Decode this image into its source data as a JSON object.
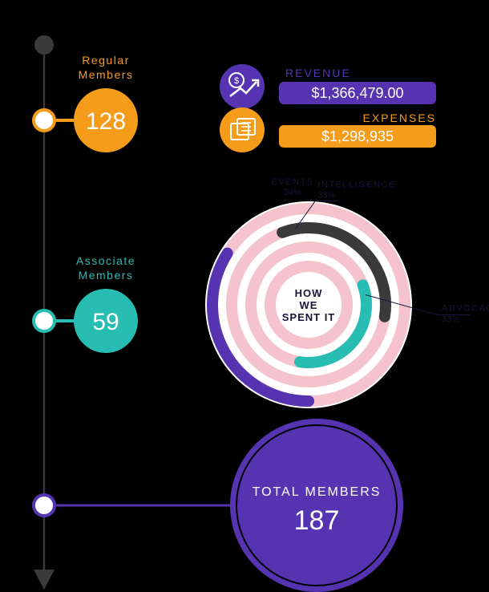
{
  "colors": {
    "bg": "#000000",
    "orange": "#f59c1a",
    "teal": "#27bdb2",
    "purple": "#5633b0",
    "purple_badge": "#5633b0",
    "orange_badge": "#f59c1a",
    "pink": "#f4c3cd",
    "dark_gray": "#3a3a3a",
    "text_dark": "#1a1437",
    "white": "#ffffff",
    "timeline": "#3a3a3a"
  },
  "timeline": {
    "top_dot_color": "#3a3a3a",
    "arrow_color": "#3a3a3a"
  },
  "regular": {
    "label1": "Regular",
    "label2": "Members",
    "value": "128",
    "label_color": "#f59c1a",
    "circle_fill": "#f59c1a",
    "circle_ring": "#f59c1a",
    "value_color": "#ffffff",
    "label_fontsize": 14,
    "value_fontsize": 30
  },
  "associate": {
    "label1": "Associate",
    "label2": "Members",
    "value": "59",
    "label_color": "#27bdb2",
    "circle_fill": "#27bdb2",
    "circle_ring": "#27bdb2",
    "value_color": "#ffffff",
    "label_fontsize": 14,
    "value_fontsize": 30
  },
  "total": {
    "label": "TOTAL MEMBERS",
    "value": "187",
    "circle_fill": "#5633b0",
    "circle_ring": "#5633b0",
    "value_color": "#ffffff",
    "label_fontsize": 16,
    "value_fontsize": 34
  },
  "finance": {
    "revenue": {
      "label": "REVENUE",
      "value": "$1,366,479.00",
      "label_color": "#5633b0",
      "badge_bg": "#5633b0",
      "badge_text": "#ffffff",
      "icon_bg": "#5633b0",
      "icon_stroke": "#ffffff"
    },
    "expenses": {
      "label": "EXPENSES",
      "value": "$1,298,935",
      "label_color": "#f59c1a",
      "badge_bg": "#f59c1a",
      "badge_text": "#ffffff",
      "icon_bg": "#f59c1a",
      "icon_stroke": "#ffffff"
    }
  },
  "radial": {
    "center_line1": "HOW",
    "center_line2": "WE",
    "center_line3": "SPENT IT",
    "center_fontsize": 13,
    "center_color": "#1a1437",
    "background_ring_color": "#f4c3cd",
    "rings": [
      {
        "label": "EVENTS",
        "pct_label": "34%",
        "pct": 0.34,
        "color": "#5633b0",
        "radius": 120,
        "start_angle": 180
      },
      {
        "label": "INTELLIGENCE",
        "pct_label": "33%",
        "pct": 0.33,
        "color": "#3a3a3a",
        "radius": 96,
        "start_angle": -20
      },
      {
        "label": "ADVOCACY",
        "pct_label": "33%",
        "pct": 0.33,
        "color": "#27bdb2",
        "radius": 72,
        "start_angle": 70
      }
    ],
    "ring_stroke_width": 14,
    "label_fontsize": 11,
    "label_color": "#1a1437"
  }
}
